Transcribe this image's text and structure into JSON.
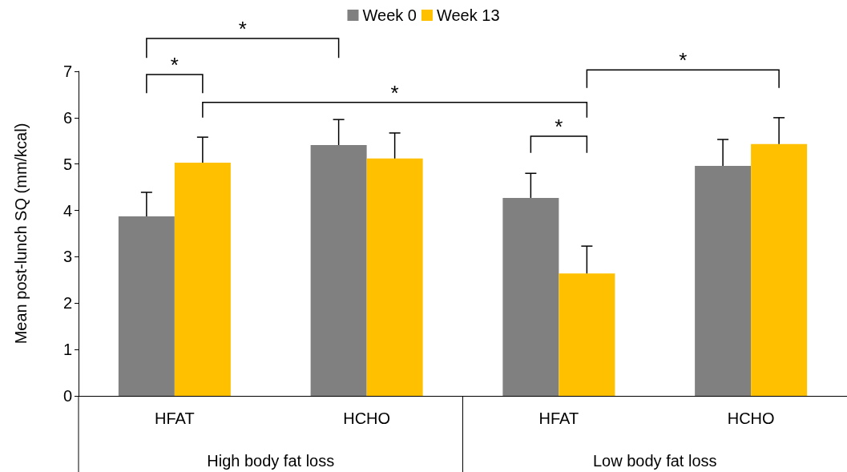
{
  "chart_data": {
    "type": "bar",
    "categories": [
      "HFAT",
      "HCHO",
      "HFAT",
      "HCHO"
    ],
    "ylabel": "Mean post-lunch SQ (mm/kcal)",
    "series": [
      {
        "name": "Week 0",
        "color": "#808080",
        "values": [
          3.87,
          5.41,
          4.27,
          4.96
        ],
        "errors": [
          [
            3.87,
            4.39
          ],
          [
            5.41,
            5.96
          ],
          [
            4.27,
            4.8
          ],
          [
            4.96,
            5.53
          ]
        ]
      },
      {
        "name": "Week 13",
        "color": "#ffc000",
        "values": [
          5.03,
          5.12,
          2.64,
          5.43
        ],
        "errors": [
          [
            5.03,
            5.58
          ],
          [
            5.12,
            5.67
          ],
          [
            2.64,
            3.23
          ],
          [
            5.43,
            6.0
          ]
        ]
      }
    ],
    "ylim": [
      0,
      7
    ],
    "yticks": [
      0,
      1,
      2,
      3,
      4,
      5,
      6,
      7
    ],
    "grid": false,
    "legend": "top",
    "annotations": [
      "*",
      "*",
      "*",
      "*",
      "*",
      "High body fat loss",
      "Low body fat loss"
    ]
  }
}
